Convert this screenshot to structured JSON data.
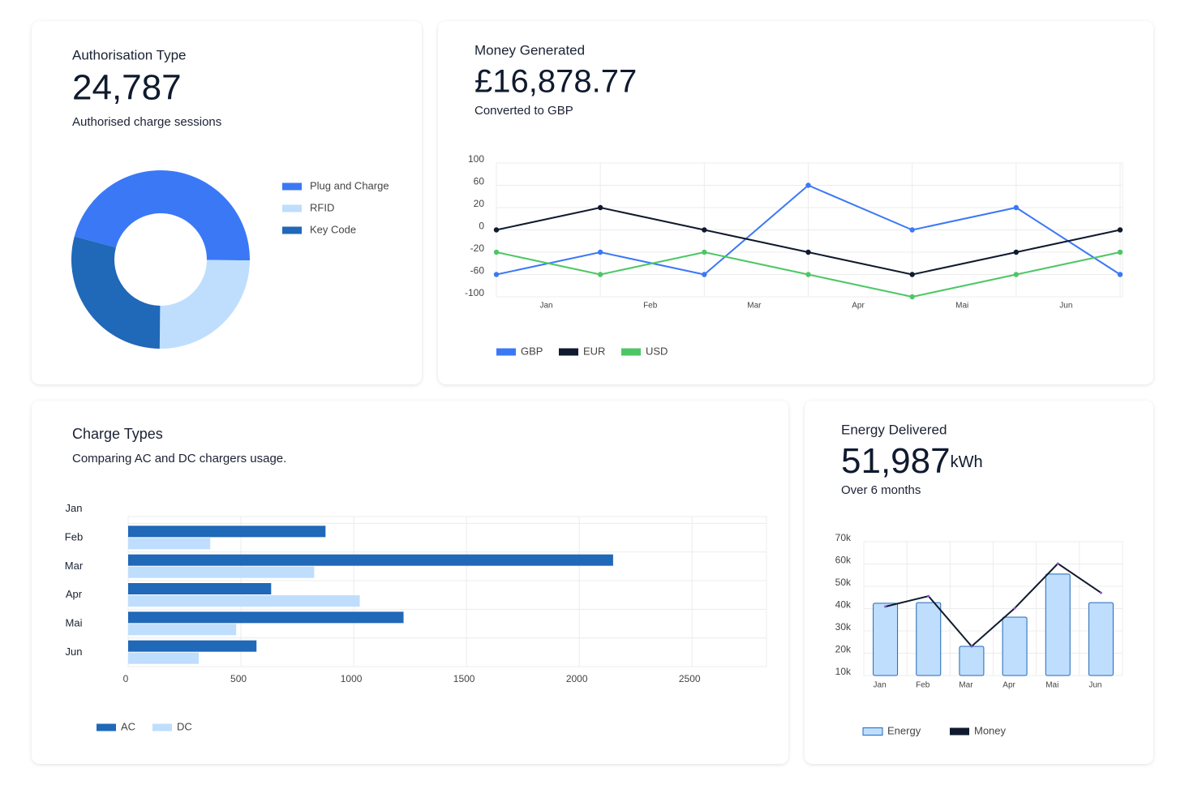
{
  "chart_data": [
    {
      "type": "pie",
      "title": "Authorisation Type",
      "headline": "24,787",
      "subtitle": "Authorised charge sessions",
      "categories": [
        "Plug and Charge",
        "RFID",
        "Key Code"
      ],
      "values": [
        46,
        25,
        29
      ],
      "colors": [
        "#3b78f6",
        "#bfdefe",
        "#2068b8"
      ],
      "donut": true,
      "start_angle": -75,
      "legend": "right"
    },
    {
      "type": "line",
      "title": "Money Generated",
      "headline": "£16,878.77",
      "subtitle": "Converted to GBP",
      "categories": [
        "Jan",
        "Feb",
        "Mar",
        "Apr",
        "Mai",
        "Jun",
        null
      ],
      "series": [
        {
          "name": "GBP",
          "color": "#3b78f6",
          "values": [
            -60,
            -20,
            -60,
            60,
            0,
            20,
            -60
          ]
        },
        {
          "name": "EUR",
          "color": "#0f1a2e",
          "values": [
            0,
            20,
            0,
            -20,
            -60,
            -20,
            0
          ]
        },
        {
          "name": "USD",
          "color": "#4cc764",
          "values": [
            -20,
            -60,
            -20,
            -60,
            -100,
            -60,
            -20
          ]
        }
      ],
      "ylim": [
        -100,
        100
      ],
      "yticks": [
        100,
        60,
        20,
        0,
        -20,
        -60,
        -100
      ],
      "grid": true,
      "legend": "bottom"
    },
    {
      "type": "barh",
      "title": "Charge Types",
      "subtitle": "Comparing AC and DC chargers usage.",
      "categories": [
        "Jan",
        "Feb",
        "Mar",
        "Apr",
        "Mai",
        "Jun"
      ],
      "series": [
        {
          "name": "AC",
          "color": "#2068b8",
          "values": [
            null,
            875,
            2150,
            634,
            1221,
            569
          ]
        },
        {
          "name": "DC",
          "color": "#bfdefe",
          "values": [
            null,
            364,
            825,
            1027,
            479,
            313
          ]
        }
      ],
      "xlim": [
        0,
        2830
      ],
      "xticks": [
        0,
        500,
        1000,
        1500,
        2000,
        2500
      ],
      "grid": true,
      "legend": "bottom"
    },
    {
      "type": "combo",
      "title": "Energy Delivered",
      "headline": "51,987",
      "unit": "kWh",
      "subtitle": "Over 6 months",
      "categories": [
        "Jan",
        "Feb",
        "Mar",
        "Apr",
        "Mai",
        "Jun"
      ],
      "series": [
        {
          "name": "Energy",
          "kind": "bar",
          "color": "#bfdefe",
          "values": [
            42400,
            42700,
            23100,
            36200,
            55500,
            42700
          ]
        },
        {
          "name": "Money",
          "kind": "line",
          "color": "#0f1a2e",
          "values": [
            40900,
            45600,
            23100,
            40200,
            60200,
            47100
          ]
        }
      ],
      "ylim": [
        10000,
        70000
      ],
      "yticks": [
        {
          "value": 70000,
          "label": "70k"
        },
        {
          "value": 60000,
          "label": "60k"
        },
        {
          "value": 50000,
          "label": "50k"
        },
        {
          "value": 40000,
          "label": "40k"
        },
        {
          "value": 30000,
          "label": "30k"
        },
        {
          "value": 20000,
          "label": "20k"
        },
        {
          "value": 10000,
          "label": "10k"
        }
      ],
      "grid": true,
      "legend": "bottom"
    }
  ]
}
